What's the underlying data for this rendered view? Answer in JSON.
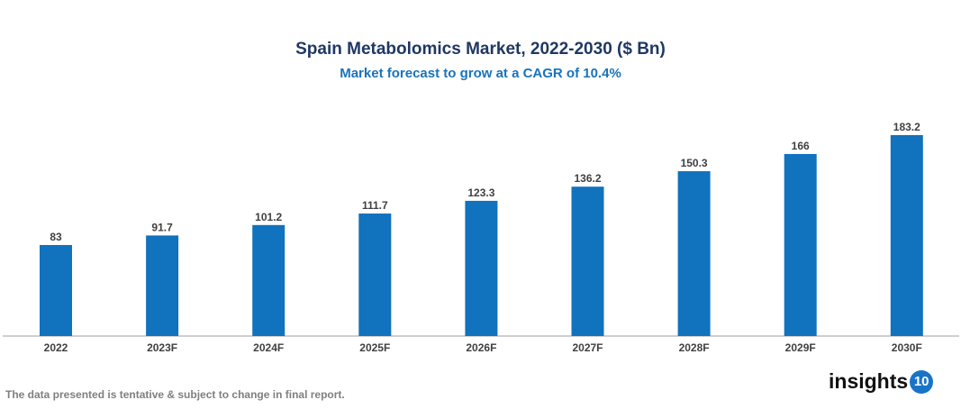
{
  "chart_data": {
    "type": "bar",
    "title": "Spain Metabolomics Market, 2022-2030 ($ Bn)",
    "subtitle": "Market forecast to grow at a CAGR of 10.4%",
    "categories": [
      "2022",
      "2023F",
      "2024F",
      "2025F",
      "2026F",
      "2027F",
      "2028F",
      "2029F",
      "2030F"
    ],
    "values": [
      83,
      91.7,
      101.2,
      111.7,
      123.3,
      136.2,
      150.3,
      166,
      183.2
    ],
    "labels": [
      "83",
      "91.7",
      "101.2",
      "111.7",
      "123.3",
      "136.2",
      "150.3",
      "166",
      "183.2"
    ],
    "xlabel": "",
    "ylabel": "",
    "ylim": [
      0,
      190
    ],
    "grid": false,
    "bar_color": "#1172bd"
  },
  "footer": {
    "note": "The data presented is tentative & subject to change in final report.",
    "logo_text": "insights",
    "logo_badge": "10"
  }
}
